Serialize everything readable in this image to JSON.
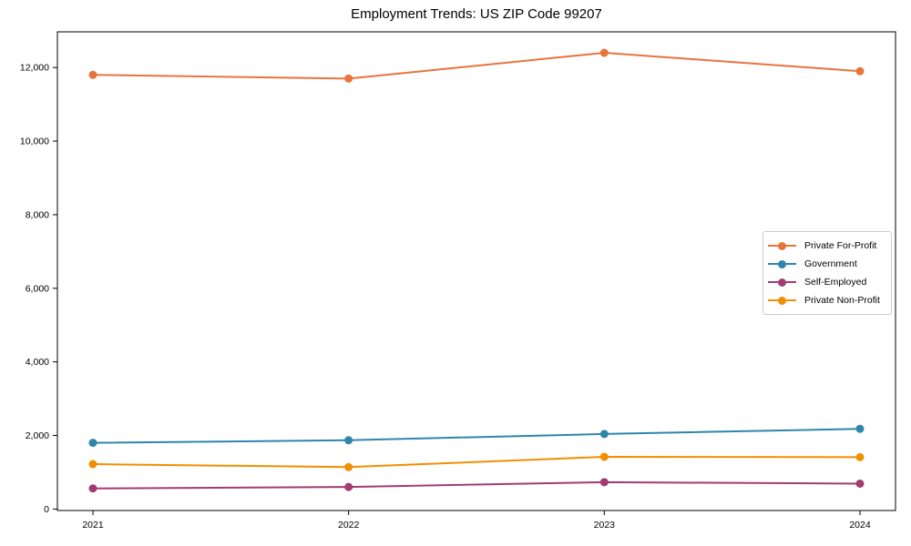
{
  "chart_data": {
    "type": "line",
    "title": "Employment Trends: US ZIP Code 99207",
    "categories": [
      "2021",
      "2022",
      "2023",
      "2024"
    ],
    "series": [
      {
        "name": "Private For-Profit",
        "color": "#E8743B",
        "values": [
          11800,
          11700,
          12400,
          11900
        ]
      },
      {
        "name": "Government",
        "color": "#2E86AB",
        "values": [
          1800,
          1870,
          2040,
          2180
        ]
      },
      {
        "name": "Self-Employed",
        "color": "#A23B72",
        "values": [
          560,
          600,
          730,
          690
        ]
      },
      {
        "name": "Private Non-Profit",
        "color": "#F18F01",
        "values": [
          1220,
          1140,
          1420,
          1410
        ]
      }
    ],
    "yticks": [
      0,
      2000,
      4000,
      6000,
      8000,
      10000,
      12000
    ],
    "ytick_labels": [
      "0",
      "2,000",
      "4,000",
      "6,000",
      "8,000",
      "10,000",
      "12,000"
    ],
    "ylim": [
      -40,
      12970
    ],
    "grid": false,
    "legend_position": "center right",
    "marker": "circle",
    "frame": true,
    "axis_color": "#000000",
    "background_color": "#ffffff"
  }
}
